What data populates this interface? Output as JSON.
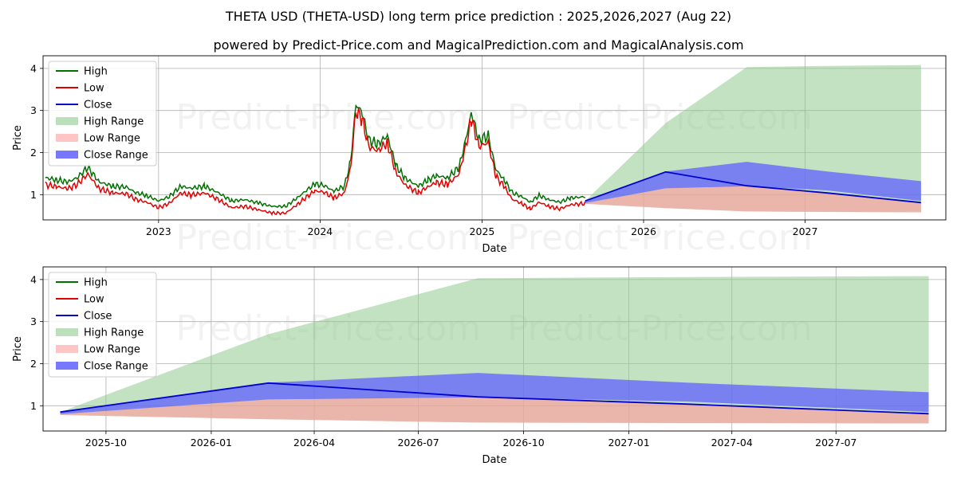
{
  "title": "THETA USD (THETA-USD) long term price prediction : 2025,2026,2027 (Aug 22)",
  "subtitle": "powered by Predict-Price.com and MagicalPrediction.com and MagicalAnalysis.com",
  "watermark": "Predict-Price.com",
  "colors": {
    "high": "#007000",
    "low": "#e00000",
    "close": "#0000d0",
    "high_range": "#8fca8f",
    "low_range": "#ff9c9c",
    "close_range": "#6060ff",
    "grid": "#b0b0b0"
  },
  "legend": [
    {
      "key": "high",
      "label": "High",
      "kind": "line"
    },
    {
      "key": "low",
      "label": "Low",
      "kind": "line"
    },
    {
      "key": "close",
      "label": "Close",
      "kind": "line"
    },
    {
      "key": "high_range",
      "label": "High Range",
      "kind": "patch"
    },
    {
      "key": "low_range",
      "label": "Low Range",
      "kind": "patch"
    },
    {
      "key": "close_range",
      "label": "Close Range",
      "kind": "patch"
    }
  ],
  "chart_data": [
    {
      "type": "line",
      "xlabel": "Date",
      "ylabel": "Price",
      "xlim": [
        "2022-04-15",
        "2027-11-15"
      ],
      "ylim": [
        0.4,
        4.3
      ],
      "yticks": [
        1,
        2,
        3,
        4
      ],
      "xticks": [
        {
          "date": "2023-01-01",
          "label": "2023"
        },
        {
          "date": "2024-01-01",
          "label": "2024"
        },
        {
          "date": "2025-01-01",
          "label": "2025"
        },
        {
          "date": "2026-01-01",
          "label": "2026"
        },
        {
          "date": "2027-01-01",
          "label": "2027"
        }
      ],
      "grid": true,
      "legend_position": "upper-left",
      "history_points": [
        [
          "2022-04-20",
          1.3
        ],
        [
          "2022-05-15",
          1.25
        ],
        [
          "2022-06-10",
          1.2
        ],
        [
          "2022-07-01",
          1.3
        ],
        [
          "2022-07-25",
          1.55
        ],
        [
          "2022-08-20",
          1.2
        ],
        [
          "2022-09-20",
          1.1
        ],
        [
          "2022-10-20",
          1.08
        ],
        [
          "2022-11-10",
          0.95
        ],
        [
          "2022-12-05",
          0.88
        ],
        [
          "2023-01-01",
          0.75
        ],
        [
          "2023-01-25",
          0.85
        ],
        [
          "2023-02-20",
          1.1
        ],
        [
          "2023-03-15",
          1.05
        ],
        [
          "2023-04-15",
          1.1
        ],
        [
          "2023-05-15",
          0.95
        ],
        [
          "2023-06-15",
          0.75
        ],
        [
          "2023-07-15",
          0.78
        ],
        [
          "2023-08-15",
          0.7
        ],
        [
          "2023-09-15",
          0.62
        ],
        [
          "2023-10-15",
          0.62
        ],
        [
          "2023-11-10",
          0.82
        ],
        [
          "2023-12-01",
          1.0
        ],
        [
          "2023-12-20",
          1.15
        ],
        [
          "2024-01-10",
          1.12
        ],
        [
          "2024-02-01",
          0.98
        ],
        [
          "2024-02-25",
          1.1
        ],
        [
          "2024-03-10",
          1.7
        ],
        [
          "2024-03-22",
          3.05
        ],
        [
          "2024-04-05",
          2.85
        ],
        [
          "2024-04-20",
          2.2
        ],
        [
          "2024-05-10",
          2.1
        ],
        [
          "2024-06-01",
          2.3
        ],
        [
          "2024-06-20",
          1.6
        ],
        [
          "2024-07-10",
          1.3
        ],
        [
          "2024-07-25",
          1.2
        ],
        [
          "2024-08-10",
          1.1
        ],
        [
          "2024-09-01",
          1.25
        ],
        [
          "2024-09-20",
          1.35
        ],
        [
          "2024-10-15",
          1.3
        ],
        [
          "2024-11-10",
          1.55
        ],
        [
          "2024-11-25",
          2.2
        ],
        [
          "2024-12-08",
          2.85
        ],
        [
          "2024-12-25",
          2.2
        ],
        [
          "2025-01-15",
          2.3
        ],
        [
          "2025-02-01",
          1.5
        ],
        [
          "2025-02-20",
          1.25
        ],
        [
          "2025-03-10",
          0.95
        ],
        [
          "2025-04-01",
          0.85
        ],
        [
          "2025-04-20",
          0.72
        ],
        [
          "2025-05-10",
          0.88
        ],
        [
          "2025-06-01",
          0.78
        ],
        [
          "2025-06-25",
          0.72
        ],
        [
          "2025-07-20",
          0.82
        ],
        [
          "2025-08-22",
          0.85
        ]
      ],
      "history_high_offset": 0.1,
      "history_low_offset": -0.06,
      "forecast": {
        "dates": [
          "2025-08-22",
          "2026-02-20",
          "2026-08-22",
          "2027-02-20",
          "2027-09-20"
        ],
        "high_upper": [
          0.85,
          2.7,
          4.03,
          4.06,
          4.08
        ],
        "low_lower": [
          0.78,
          0.68,
          0.6,
          0.59,
          0.58
        ],
        "close_upper": [
          0.85,
          1.55,
          1.78,
          1.55,
          1.32
        ],
        "close_lower": [
          0.8,
          1.15,
          1.2,
          1.1,
          0.85
        ],
        "low_upper": [
          0.8,
          1.15,
          1.22,
          1.05,
          0.82
        ],
        "close": [
          0.85,
          1.54,
          1.21,
          1.04,
          0.81
        ]
      }
    },
    {
      "type": "line",
      "xlabel": "Date",
      "ylabel": "Price",
      "xlim": [
        "2025-08-07",
        "2027-10-05"
      ],
      "ylim": [
        0.4,
        4.3
      ],
      "yticks": [
        1,
        2,
        3,
        4
      ],
      "xticks": [
        {
          "date": "2025-10-01",
          "label": "2025-10"
        },
        {
          "date": "2026-01-01",
          "label": "2026-01"
        },
        {
          "date": "2026-04-01",
          "label": "2026-04"
        },
        {
          "date": "2026-07-01",
          "label": "2026-07"
        },
        {
          "date": "2026-10-01",
          "label": "2026-10"
        },
        {
          "date": "2027-01-01",
          "label": "2027-01"
        },
        {
          "date": "2027-04-01",
          "label": "2027-04"
        },
        {
          "date": "2027-07-01",
          "label": "2027-07"
        }
      ],
      "grid": true,
      "legend_position": "upper-left",
      "forecast": {
        "dates": [
          "2025-08-22",
          "2026-02-20",
          "2026-08-22",
          "2027-02-20",
          "2027-09-20"
        ],
        "high_upper": [
          0.85,
          2.7,
          4.03,
          4.06,
          4.08
        ],
        "low_lower": [
          0.78,
          0.68,
          0.6,
          0.59,
          0.58
        ],
        "close_upper": [
          0.85,
          1.55,
          1.78,
          1.55,
          1.32
        ],
        "close_lower": [
          0.8,
          1.15,
          1.2,
          1.1,
          0.85
        ],
        "low_upper": [
          0.8,
          1.15,
          1.22,
          1.05,
          0.82
        ],
        "close": [
          0.85,
          1.54,
          1.21,
          1.04,
          0.81
        ]
      }
    }
  ]
}
